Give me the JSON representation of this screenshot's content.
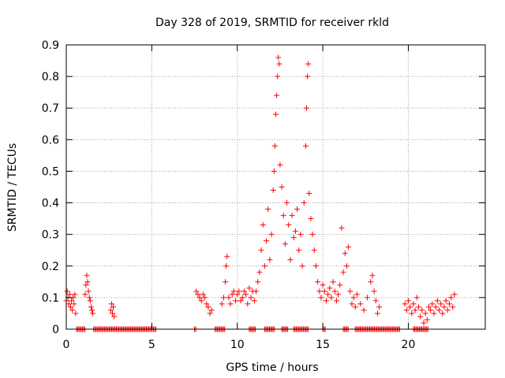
{
  "chart_data": {
    "type": "scatter",
    "title": "Day 328 of 2019, SRMTID for receiver rkld",
    "xlabel": "GPS time / hours",
    "ylabel": "SRMTID / TECUs",
    "xlim": [
      0,
      24.5
    ],
    "ylim": [
      0,
      0.9
    ],
    "xticks": [
      0,
      5,
      10,
      15,
      20
    ],
    "xtick_labels": [
      "0",
      "5",
      "10",
      "15",
      "20"
    ],
    "yticks": [
      0,
      0.1,
      0.2,
      0.3,
      0.4,
      0.5,
      0.6,
      0.7,
      0.8,
      0.9
    ],
    "ytick_labels": [
      "0",
      "0.1",
      "0.2",
      "0.3",
      "0.4",
      "0.5",
      "0.6",
      "0.7",
      "0.8",
      "0.9"
    ],
    "grid": true,
    "marker": "+",
    "marker_color": "#ff0000",
    "axis_color": "#000000",
    "grid_color": "#a0a0a0",
    "series": [
      {
        "name": "SRMTID",
        "points": [
          [
            0.0,
            0.09
          ],
          [
            0.05,
            0.12
          ],
          [
            0.1,
            0.1
          ],
          [
            0.15,
            0.08
          ],
          [
            0.2,
            0.11
          ],
          [
            0.25,
            0.07
          ],
          [
            0.3,
            0.09
          ],
          [
            0.35,
            0.06
          ],
          [
            0.4,
            0.1
          ],
          [
            0.45,
            0.08
          ],
          [
            0.5,
            0.11
          ],
          [
            0.55,
            0.05
          ],
          [
            1.1,
            0.11
          ],
          [
            1.15,
            0.14
          ],
          [
            1.2,
            0.17
          ],
          [
            1.25,
            0.15
          ],
          [
            1.3,
            0.12
          ],
          [
            1.35,
            0.1
          ],
          [
            1.4,
            0.09
          ],
          [
            1.45,
            0.07
          ],
          [
            1.5,
            0.06
          ],
          [
            1.55,
            0.05
          ],
          [
            2.6,
            0.06
          ],
          [
            2.65,
            0.08
          ],
          [
            2.7,
            0.05
          ],
          [
            2.75,
            0.07
          ],
          [
            2.8,
            0.04
          ],
          [
            7.6,
            0.12
          ],
          [
            7.7,
            0.11
          ],
          [
            7.8,
            0.1
          ],
          [
            7.9,
            0.09
          ],
          [
            8.0,
            0.11
          ],
          [
            8.1,
            0.1
          ],
          [
            8.2,
            0.08
          ],
          [
            8.3,
            0.07
          ],
          [
            8.4,
            0.05
          ],
          [
            8.5,
            0.06
          ],
          [
            9.1,
            0.08
          ],
          [
            9.2,
            0.1
          ],
          [
            9.3,
            0.15
          ],
          [
            9.35,
            0.2
          ],
          [
            9.4,
            0.23
          ],
          [
            9.5,
            0.1
          ],
          [
            9.6,
            0.08
          ],
          [
            9.7,
            0.11
          ],
          [
            9.8,
            0.12
          ],
          [
            9.9,
            0.09
          ],
          [
            10.0,
            0.11
          ],
          [
            10.1,
            0.12
          ],
          [
            10.2,
            0.09
          ],
          [
            10.3,
            0.1
          ],
          [
            10.4,
            0.12
          ],
          [
            10.5,
            0.11
          ],
          [
            10.6,
            0.08
          ],
          [
            10.7,
            0.13
          ],
          [
            10.8,
            0.1
          ],
          [
            10.9,
            0.12
          ],
          [
            11.0,
            0.09
          ],
          [
            11.1,
            0.12
          ],
          [
            11.2,
            0.15
          ],
          [
            11.3,
            0.18
          ],
          [
            11.4,
            0.25
          ],
          [
            11.5,
            0.33
          ],
          [
            11.6,
            0.2
          ],
          [
            11.7,
            0.28
          ],
          [
            11.8,
            0.38
          ],
          [
            11.9,
            0.22
          ],
          [
            12.0,
            0.3
          ],
          [
            12.1,
            0.44
          ],
          [
            12.15,
            0.5
          ],
          [
            12.2,
            0.58
          ],
          [
            12.25,
            0.68
          ],
          [
            12.3,
            0.74
          ],
          [
            12.35,
            0.8
          ],
          [
            12.4,
            0.86
          ],
          [
            12.45,
            0.84
          ],
          [
            12.5,
            0.52
          ],
          [
            12.6,
            0.45
          ],
          [
            12.7,
            0.36
          ],
          [
            12.8,
            0.27
          ],
          [
            12.9,
            0.4
          ],
          [
            13.0,
            0.33
          ],
          [
            13.1,
            0.22
          ],
          [
            13.2,
            0.36
          ],
          [
            13.3,
            0.29
          ],
          [
            13.4,
            0.31
          ],
          [
            13.5,
            0.38
          ],
          [
            13.6,
            0.25
          ],
          [
            13.7,
            0.3
          ],
          [
            13.8,
            0.2
          ],
          [
            13.9,
            0.4
          ],
          [
            14.0,
            0.58
          ],
          [
            14.05,
            0.7
          ],
          [
            14.1,
            0.8
          ],
          [
            14.15,
            0.84
          ],
          [
            14.2,
            0.43
          ],
          [
            14.3,
            0.35
          ],
          [
            14.4,
            0.3
          ],
          [
            14.5,
            0.25
          ],
          [
            14.6,
            0.2
          ],
          [
            14.7,
            0.15
          ],
          [
            14.8,
            0.12
          ],
          [
            14.9,
            0.1
          ],
          [
            15.0,
            0.14
          ],
          [
            15.1,
            0.12
          ],
          [
            15.2,
            0.09
          ],
          [
            15.3,
            0.11
          ],
          [
            15.4,
            0.13
          ],
          [
            15.5,
            0.1
          ],
          [
            15.6,
            0.15
          ],
          [
            15.7,
            0.12
          ],
          [
            15.8,
            0.09
          ],
          [
            15.9,
            0.11
          ],
          [
            16.0,
            0.14
          ],
          [
            16.1,
            0.32
          ],
          [
            16.2,
            0.18
          ],
          [
            16.3,
            0.24
          ],
          [
            16.4,
            0.2
          ],
          [
            16.5,
            0.26
          ],
          [
            16.6,
            0.12
          ],
          [
            16.7,
            0.08
          ],
          [
            16.8,
            0.1
          ],
          [
            16.9,
            0.07
          ],
          [
            17.0,
            0.11
          ],
          [
            17.2,
            0.08
          ],
          [
            17.4,
            0.06
          ],
          [
            17.6,
            0.1
          ],
          [
            17.8,
            0.15
          ],
          [
            17.9,
            0.17
          ],
          [
            18.0,
            0.12
          ],
          [
            18.1,
            0.09
          ],
          [
            18.2,
            0.05
          ],
          [
            18.3,
            0.07
          ],
          [
            19.8,
            0.08
          ],
          [
            19.9,
            0.06
          ],
          [
            20.0,
            0.09
          ],
          [
            20.1,
            0.07
          ],
          [
            20.2,
            0.05
          ],
          [
            20.3,
            0.08
          ],
          [
            20.4,
            0.06
          ],
          [
            20.5,
            0.1
          ],
          [
            20.6,
            0.07
          ],
          [
            20.7,
            0.04
          ],
          [
            20.8,
            0.06
          ],
          [
            20.9,
            0.02
          ],
          [
            21.0,
            0.05
          ],
          [
            21.1,
            0.03
          ],
          [
            21.2,
            0.07
          ],
          [
            21.3,
            0.06
          ],
          [
            21.4,
            0.08
          ],
          [
            21.5,
            0.05
          ],
          [
            21.6,
            0.07
          ],
          [
            21.7,
            0.09
          ],
          [
            21.8,
            0.06
          ],
          [
            21.9,
            0.08
          ],
          [
            22.0,
            0.05
          ],
          [
            22.1,
            0.07
          ],
          [
            22.2,
            0.09
          ],
          [
            22.3,
            0.06
          ],
          [
            22.4,
            0.08
          ],
          [
            22.5,
            0.1
          ],
          [
            22.6,
            0.07
          ],
          [
            22.7,
            0.11
          ]
        ]
      }
    ],
    "zero_segments": [
      [
        0.6,
        1.1
      ],
      [
        1.6,
        5.3
      ],
      [
        7.5,
        7.6
      ],
      [
        8.7,
        9.3
      ],
      [
        10.7,
        11.1
      ],
      [
        11.6,
        12.2
      ],
      [
        12.6,
        13.0
      ],
      [
        13.3,
        14.2
      ],
      [
        15.0,
        15.2
      ],
      [
        16.2,
        16.5
      ],
      [
        16.9,
        19.5
      ],
      [
        20.3,
        21.2
      ]
    ]
  }
}
